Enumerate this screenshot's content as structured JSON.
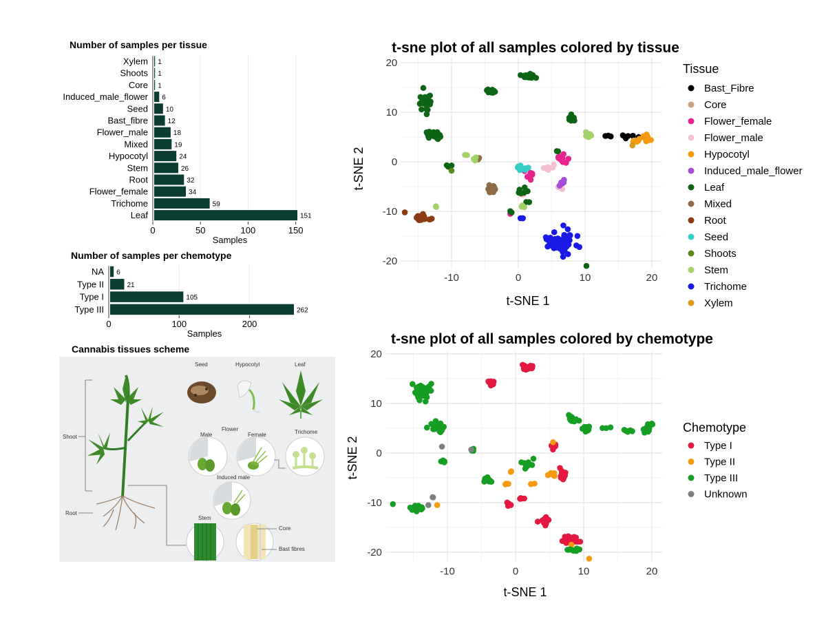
{
  "chart_data": [
    {
      "type": "bar",
      "orientation": "horizontal",
      "title": "Number of samples per tissue",
      "xlabel": "Samples",
      "ylabel": "",
      "xlim": [
        0,
        151
      ],
      "xticks": [
        0,
        50,
        100,
        150
      ],
      "categories": [
        "Xylem",
        "Shoots",
        "Core",
        "Induced_male_flower",
        "Seed",
        "Bast_fibre",
        "Flower_male",
        "Mixed",
        "Hypocotyl",
        "Stem",
        "Root",
        "Flower_female",
        "Trichome",
        "Leaf"
      ],
      "values": [
        1,
        1,
        1,
        6,
        10,
        12,
        18,
        19,
        24,
        26,
        32,
        34,
        59,
        151
      ],
      "bar_color": "#0b3d33",
      "data_labels": true
    },
    {
      "type": "bar",
      "orientation": "horizontal",
      "title": "Number of samples per chemotype",
      "xlabel": "Samples",
      "ylabel": "",
      "xlim": [
        0,
        262
      ],
      "xticks": [
        0,
        100,
        200
      ],
      "categories": [
        "NA",
        "Type II",
        "Type I",
        "Type III"
      ],
      "values": [
        6,
        21,
        105,
        262
      ],
      "bar_color": "#0b3d33",
      "data_labels": true
    },
    {
      "type": "scatter",
      "title": "t-sne plot of all samples colored by tissue",
      "xlabel": "t-SNE 1",
      "ylabel": "t-SNE 2",
      "xlim": [
        -17.5,
        21.5
      ],
      "ylim": [
        -21.5,
        21
      ],
      "xticks": [
        -10,
        0,
        10,
        20
      ],
      "yticks": [
        -20,
        -10,
        0,
        10,
        20
      ],
      "grid": true,
      "legend_title": "Tissue",
      "legend_position": "right",
      "series": [
        {
          "name": "Bast_Fibre",
          "color": "#000000",
          "clusters": [
            {
              "x": 16.5,
              "y": 5,
              "n": 6,
              "sx": 1.0,
              "sy": 0.4
            },
            {
              "x": 13.2,
              "y": 5.2,
              "n": 3,
              "sx": 0.6,
              "sy": 0.2
            }
          ]
        },
        {
          "name": "Core",
          "color": "#c8a582",
          "clusters": [
            {
              "x": 17.3,
              "y": 4.3,
              "n": 1,
              "sx": 0,
              "sy": 0
            }
          ]
        },
        {
          "name": "Flower_female",
          "color": "#e8238e",
          "clusters": [
            {
              "x": 1.5,
              "y": -2.5,
              "n": 10,
              "sx": 0.8,
              "sy": 1.0
            },
            {
              "x": 6.5,
              "y": 0.5,
              "n": 12,
              "sx": 0.6,
              "sy": 1.2
            },
            {
              "x": -1.2,
              "y": -10.5,
              "n": 1,
              "sx": 0,
              "sy": 0
            }
          ]
        },
        {
          "name": "Flower_male",
          "color": "#f4c0d0",
          "clusters": [
            {
              "x": 4.5,
              "y": -1.2,
              "n": 8,
              "sx": 0.8,
              "sy": 0.6
            },
            {
              "x": 6.3,
              "y": -5.3,
              "n": 4,
              "sx": 0.4,
              "sy": 0.4
            },
            {
              "x": 0.5,
              "y": -6.5,
              "n": 3,
              "sx": 0.4,
              "sy": 0.4
            }
          ]
        },
        {
          "name": "Hypocotyl",
          "color": "#f59a0e",
          "clusters": [
            {
              "x": 19.2,
              "y": 4.9,
              "n": 18,
              "sx": 0.7,
              "sy": 0.6
            },
            {
              "x": 17.8,
              "y": 4.3,
              "n": 6,
              "sx": 0.5,
              "sy": 0.3
            }
          ]
        },
        {
          "name": "Induced_male_flower",
          "color": "#a64ad8",
          "clusters": [
            {
              "x": 6.7,
              "y": -4.3,
              "n": 6,
              "sx": 0.5,
              "sy": 0.5
            }
          ]
        },
        {
          "name": "Leaf",
          "color": "#0c6414",
          "clusters": [
            {
              "x": -13.8,
              "y": 12.2,
              "n": 35,
              "sx": 0.9,
              "sy": 1.5
            },
            {
              "x": -12.3,
              "y": 5.3,
              "n": 24,
              "sx": 1.0,
              "sy": 1.0
            },
            {
              "x": 1.5,
              "y": 17.3,
              "n": 24,
              "sx": 1.0,
              "sy": 0.4
            },
            {
              "x": -4,
              "y": 14.2,
              "n": 10,
              "sx": 0.6,
              "sy": 0.3
            },
            {
              "x": 8,
              "y": 8.5,
              "n": 10,
              "sx": 0.6,
              "sy": 0.6
            },
            {
              "x": 0.5,
              "y": -6,
              "n": 8,
              "sx": 1.0,
              "sy": 0.7
            },
            {
              "x": -10.5,
              "y": -0.8,
              "n": 4,
              "sx": 0.6,
              "sy": 0.5
            },
            {
              "x": 10.2,
              "y": -21,
              "n": 1,
              "sx": 0,
              "sy": 0
            },
            {
              "x": -1,
              "y": -10,
              "n": 2,
              "sx": 0.3,
              "sy": 0.3
            },
            {
              "x": 5.8,
              "y": 2.2,
              "n": 2,
              "sx": 0.3,
              "sy": 0.3
            },
            {
              "x": 1.2,
              "y": -8,
              "n": 2,
              "sx": 0.3,
              "sy": 0.3
            }
          ]
        },
        {
          "name": "Mixed",
          "color": "#8c6b46",
          "clusters": [
            {
              "x": -4,
              "y": -5.5,
              "n": 14,
              "sx": 0.5,
              "sy": 0.8
            },
            {
              "x": -6.2,
              "y": 0.7,
              "n": 5,
              "sx": 0.3,
              "sy": 0.3
            }
          ]
        },
        {
          "name": "Root",
          "color": "#8a3d12",
          "clusters": [
            {
              "x": -14.5,
              "y": -11.2,
              "n": 28,
              "sx": 0.7,
              "sy": 0.5
            },
            {
              "x": -17,
              "y": -10.2,
              "n": 1,
              "sx": 0,
              "sy": 0
            },
            {
              "x": -13,
              "y": -11.5,
              "n": 3,
              "sx": 0.3,
              "sy": 0.3
            }
          ]
        },
        {
          "name": "Seed",
          "color": "#36cdc4",
          "clusters": [
            {
              "x": 0.5,
              "y": -1.3,
              "n": 10,
              "sx": 0.8,
              "sy": 0.5
            }
          ]
        },
        {
          "name": "Shoots",
          "color": "#5b8a1a",
          "clusters": [
            {
              "x": -10,
              "y": -1.8,
              "n": 1,
              "sx": 0,
              "sy": 0
            }
          ]
        },
        {
          "name": "Stem",
          "color": "#a3d16a",
          "clusters": [
            {
              "x": 10.5,
              "y": 5.3,
              "n": 12,
              "sx": 0.6,
              "sy": 0.5
            },
            {
              "x": -12.5,
              "y": -9,
              "n": 2,
              "sx": 0.4,
              "sy": 0.3
            },
            {
              "x": -8,
              "y": 1.5,
              "n": 2,
              "sx": 0.3,
              "sy": 0.3
            },
            {
              "x": 0.8,
              "y": -9,
              "n": 3,
              "sx": 0.4,
              "sy": 0.3
            },
            {
              "x": -6.5,
              "y": 0.6,
              "n": 3,
              "sx": 0.3,
              "sy": 0.3
            }
          ]
        },
        {
          "name": "Trichome",
          "color": "#1a1ae6",
          "clusters": [
            {
              "x": 6.3,
              "y": -16.3,
              "n": 59,
              "sx": 1.8,
              "sy": 2.3
            },
            {
              "x": 0.5,
              "y": -11.5,
              "n": 3,
              "sx": 0.3,
              "sy": 0.2
            }
          ]
        },
        {
          "name": "Xylem",
          "color": "#d79b14",
          "clusters": [
            {
              "x": 17.1,
              "y": 3.3,
              "n": 1,
              "sx": 0,
              "sy": 0
            }
          ]
        }
      ]
    },
    {
      "type": "scatter",
      "title": "t-sne plot of all samples colored by chemotype",
      "xlabel": "t-SNE 1",
      "ylabel": "t-SNE 2",
      "xlim": [
        -19,
        21.5
      ],
      "ylim": [
        -22,
        20.5
      ],
      "xticks": [
        -10,
        0,
        10,
        20
      ],
      "yticks": [
        -20,
        -10,
        0,
        10,
        20
      ],
      "grid": true,
      "legend_title": "Chemotype",
      "legend_position": "right",
      "series": [
        {
          "name": "Type I",
          "color": "#e3193f",
          "clusters": [
            {
              "x": 1.8,
              "y": 17.3,
              "n": 26,
              "sx": 0.9,
              "sy": 0.4
            },
            {
              "x": -3.5,
              "y": 14.2,
              "n": 10,
              "sx": 0.7,
              "sy": 0.5
            },
            {
              "x": 6.8,
              "y": -4.5,
              "n": 14,
              "sx": 0.4,
              "sy": 1.2
            },
            {
              "x": 5.8,
              "y": 1.5,
              "n": 5,
              "sx": 0.4,
              "sy": 0.5
            },
            {
              "x": 8,
              "y": -17.5,
              "n": 26,
              "sx": 1.0,
              "sy": 0.7
            },
            {
              "x": 4,
              "y": -14,
              "n": 12,
              "sx": 0.7,
              "sy": 0.8
            },
            {
              "x": -1,
              "y": -10.5,
              "n": 4,
              "sx": 0.3,
              "sy": 0.5
            },
            {
              "x": 1,
              "y": -9,
              "n": 4,
              "sx": 0.4,
              "sy": 0.3
            }
          ]
        },
        {
          "name": "Type II",
          "color": "#f59a0e",
          "clusters": [
            {
              "x": 5.1,
              "y": -4.3,
              "n": 6,
              "sx": 0.5,
              "sy": 0.3
            },
            {
              "x": -0.5,
              "y": -3.8,
              "n": 2,
              "sx": 0.3,
              "sy": 0.3
            },
            {
              "x": -1.2,
              "y": -6.2,
              "n": 3,
              "sx": 0.3,
              "sy": 0.3
            },
            {
              "x": 2.5,
              "y": -6.5,
              "n": 2,
              "sx": 0.3,
              "sy": 0.3
            },
            {
              "x": 5.5,
              "y": 2.2,
              "n": 1,
              "sx": 0,
              "sy": 0
            },
            {
              "x": -11.5,
              "y": -10.5,
              "n": 1,
              "sx": 0,
              "sy": 0
            },
            {
              "x": 10.8,
              "y": -21.3,
              "n": 1,
              "sx": 0,
              "sy": 0
            },
            {
              "x": 8.2,
              "y": -18.5,
              "n": 1,
              "sx": 0,
              "sy": 0
            }
          ]
        },
        {
          "name": "Type III",
          "color": "#169e24",
          "clusters": [
            {
              "x": -13.8,
              "y": 12.5,
              "n": 35,
              "sx": 0.9,
              "sy": 1.5
            },
            {
              "x": -11.5,
              "y": 5.2,
              "n": 22,
              "sx": 1.2,
              "sy": 1.0
            },
            {
              "x": -10.5,
              "y": -1.5,
              "n": 4,
              "sx": 0.5,
              "sy": 0.4
            },
            {
              "x": -14.5,
              "y": -11.2,
              "n": 28,
              "sx": 0.7,
              "sy": 0.5
            },
            {
              "x": -18,
              "y": -10.3,
              "n": 1,
              "sx": 0,
              "sy": 0
            },
            {
              "x": -4.2,
              "y": -5.5,
              "n": 10,
              "sx": 0.7,
              "sy": 0.9
            },
            {
              "x": 1.5,
              "y": -2.5,
              "n": 12,
              "sx": 1.2,
              "sy": 1.5
            },
            {
              "x": 8.5,
              "y": 7,
              "n": 12,
              "sx": 0.8,
              "sy": 1.2
            },
            {
              "x": 10.5,
              "y": 5,
              "n": 8,
              "sx": 0.6,
              "sy": 0.6
            },
            {
              "x": 13.5,
              "y": 5,
              "n": 3,
              "sx": 0.6,
              "sy": 0.2
            },
            {
              "x": 16.5,
              "y": 4.5,
              "n": 5,
              "sx": 0.7,
              "sy": 0.4
            },
            {
              "x": 19.3,
              "y": 4.8,
              "n": 18,
              "sx": 0.6,
              "sy": 0.6
            },
            {
              "x": 8.5,
              "y": -19.5,
              "n": 12,
              "sx": 1.0,
              "sy": 0.3
            },
            {
              "x": -6.2,
              "y": 0.5,
              "n": 3,
              "sx": 0.3,
              "sy": 0.3
            }
          ]
        },
        {
          "name": "Unknown",
          "color": "#7f7f7f",
          "clusters": [
            {
              "x": -12,
              "y": -9,
              "n": 2,
              "sx": 0.4,
              "sy": 0.3
            },
            {
              "x": -6.5,
              "y": 0.7,
              "n": 1,
              "sx": 0,
              "sy": 0
            },
            {
              "x": -10.8,
              "y": 1.3,
              "n": 1,
              "sx": 0,
              "sy": 0
            },
            {
              "x": -12.8,
              "y": -10.5,
              "n": 1,
              "sx": 0,
              "sy": 0
            }
          ]
        }
      ]
    }
  ],
  "scheme": {
    "title": "Cannabis tissues scheme",
    "labels": {
      "seed": "Seed",
      "hypocotyl": "Hypocotyl",
      "leaf": "Leaf",
      "flower": "Flower",
      "male": "Male",
      "female": "Female",
      "trichome": "Trichome",
      "induced_male": "Induced male",
      "shoot": "Shoot",
      "root": "Root",
      "stem": "Stem",
      "core": "Core",
      "bast_fibres": "Bast fibres"
    }
  }
}
